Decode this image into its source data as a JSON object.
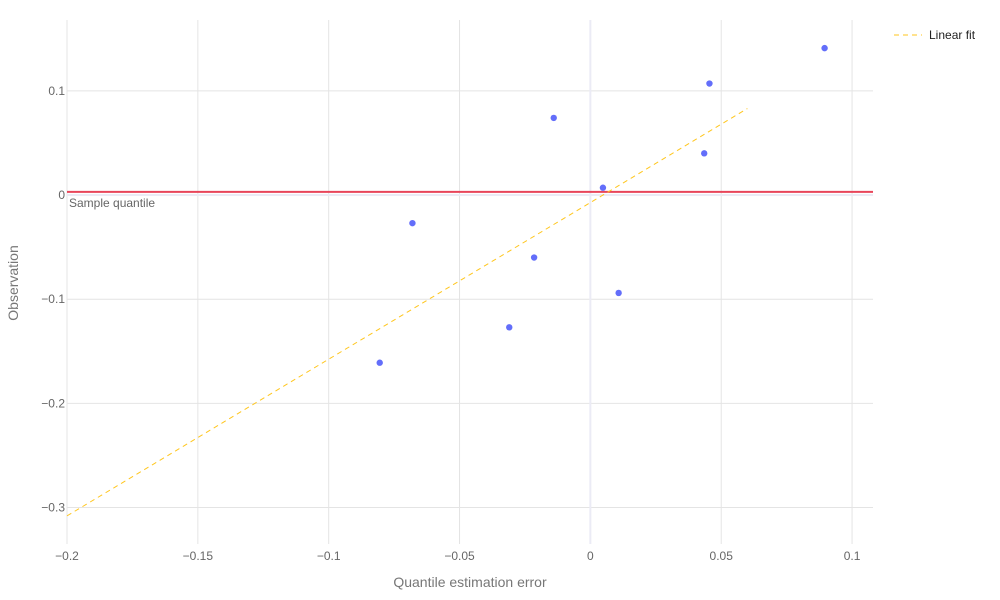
{
  "chart_data": {
    "type": "scatter",
    "xlabel": "Quantile estimation error",
    "ylabel": "Observation",
    "xlim": [
      -0.2,
      0.108
    ],
    "ylim": [
      -0.335,
      0.168
    ],
    "x_ticks": [
      -0.2,
      -0.15,
      -0.1,
      -0.05,
      0,
      0.05,
      0.1
    ],
    "x_tick_labels": [
      "−0.2",
      "−0.15",
      "−0.1",
      "−0.05",
      "0",
      "0.05",
      "0.1"
    ],
    "y_ticks": [
      -0.3,
      -0.2,
      -0.1,
      0,
      0.1
    ],
    "y_tick_labels": [
      "−0.3",
      "−0.2",
      "−0.1",
      "0",
      "0.1"
    ],
    "grid": true,
    "legend_position": "top-right",
    "series": [
      {
        "kind": "markers",
        "color": "#636efa",
        "x": [
          -0.0805,
          -0.068,
          -0.031,
          -0.0215,
          -0.014,
          0.0048,
          0.0108,
          0.0435,
          0.0455,
          0.0895
        ],
        "y": [
          -0.161,
          -0.027,
          -0.127,
          -0.06,
          0.074,
          0.007,
          -0.094,
          0.04,
          0.107,
          0.141
        ]
      },
      {
        "name": "Linear fit",
        "kind": "dashed-line",
        "color": "#ffc61e",
        "x": [
          -0.2,
          0.06
        ],
        "y": [
          -0.308,
          0.083
        ]
      }
    ],
    "horizontal_line": {
      "y": 0.003,
      "color": "#e8455a",
      "label": "Sample quantile"
    }
  }
}
